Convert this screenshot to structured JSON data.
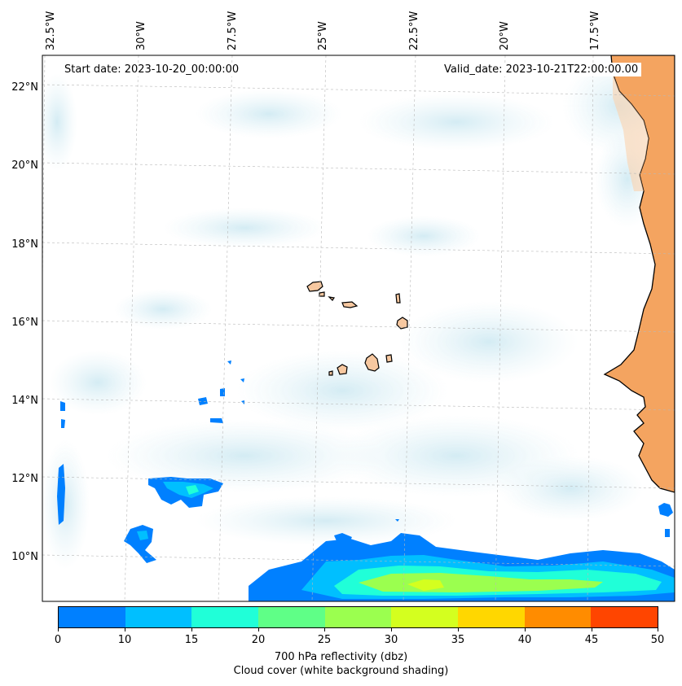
{
  "map": {
    "longitude_labels": [
      "32.5°W",
      "30°W",
      "27.5°W",
      "25°W",
      "22.5°W",
      "20°W",
      "17.5°W"
    ],
    "latitude_labels": [
      "22°N",
      "20°N",
      "18°N",
      "16°N",
      "14°N",
      "12°N",
      "10°N"
    ],
    "start_date": "Start date: 2023-10-20_00:00:00",
    "valid_date": "Valid_date: 2023-10-21T22:00:00.00",
    "land_color": "#f4a460",
    "ocean_color": "#ffffff"
  },
  "colorbar": {
    "colors": [
      "#0080ff",
      "#00bfff",
      "#20ffd8",
      "#5fff87",
      "#9bff4f",
      "#d4ff1f",
      "#ffd700",
      "#ff8c00",
      "#ff4500"
    ],
    "ticks": [
      "0",
      "10",
      "15",
      "20",
      "25",
      "30",
      "35",
      "40",
      "45",
      "50"
    ],
    "label_line1": "700 hPa reflectivity (dbz)",
    "label_line2": "Cloud cover (white background shading)"
  }
}
